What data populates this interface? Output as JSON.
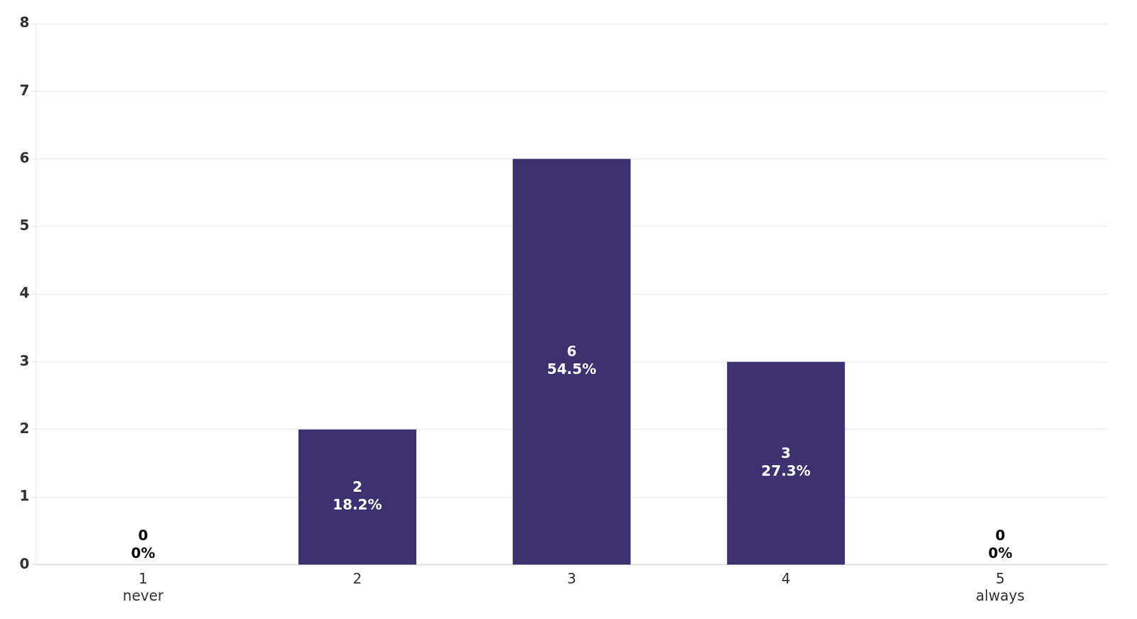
{
  "chart_data": {
    "type": "bar",
    "categories": [
      "1\nnever",
      "2",
      "3",
      "4",
      "5\nalways"
    ],
    "values": [
      0,
      2,
      6,
      3,
      0
    ],
    "color": "#3d3170",
    "data_labels": true,
    "percentages": [
      {
        "value": 0,
        "label": "0%"
      },
      {
        "value": 18.2,
        "label": "18.2%"
      },
      {
        "value": 54.5,
        "label": "54.5%"
      },
      {
        "value": 27.3,
        "label": "27.3%"
      },
      {
        "value": 0,
        "label": "0%"
      }
    ],
    "ylim": [
      0,
      8
    ],
    "yticks": [
      0,
      1,
      2,
      3,
      4,
      5,
      6,
      7,
      8
    ],
    "grid": true
  }
}
